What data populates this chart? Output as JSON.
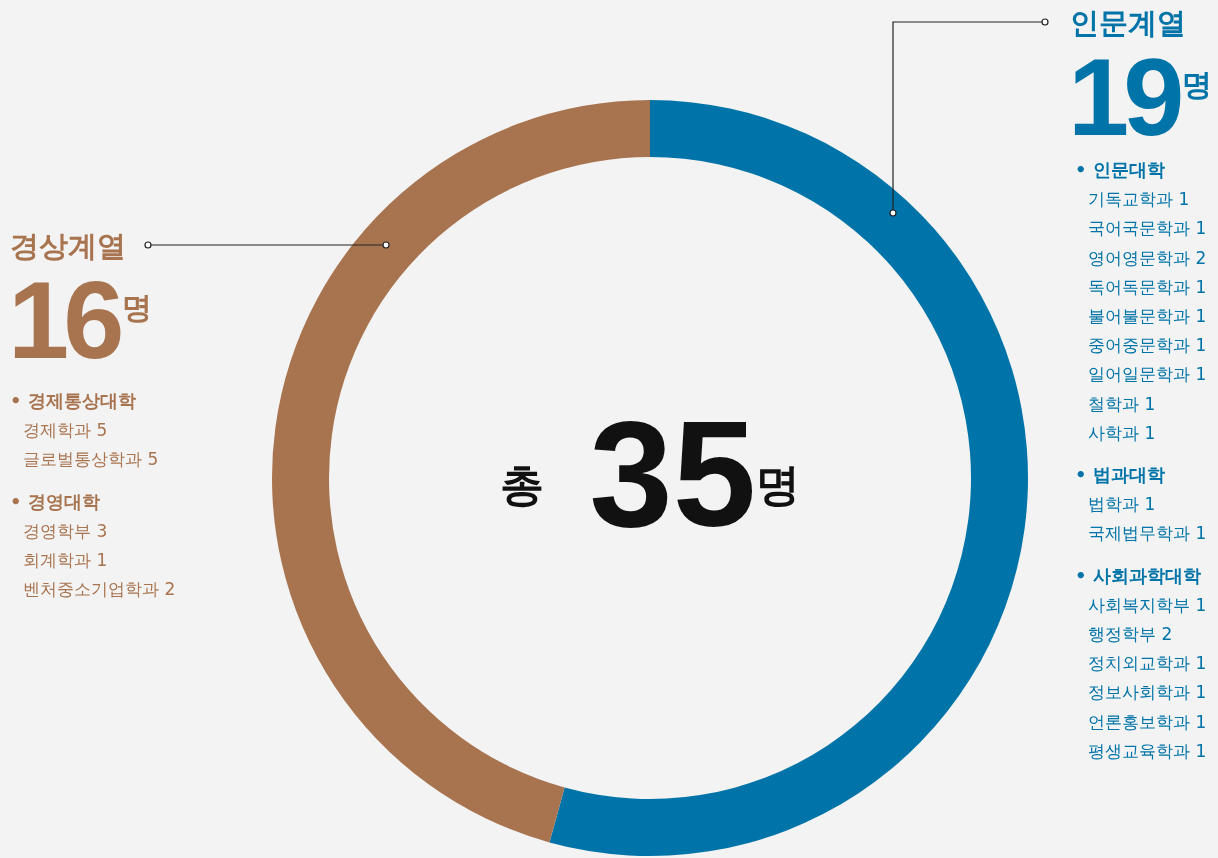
{
  "chart_data": {
    "type": "donut",
    "title": "총 35명",
    "categories": [
      "인문계열",
      "경상계열"
    ],
    "values": [
      19,
      16
    ],
    "colors": [
      "#0074a8",
      "#a87450"
    ],
    "value_labels": [
      "19명",
      "16명"
    ],
    "annotations": [
      "• 인문대학",
      "기독교학과 1",
      "국어국문학과 1",
      "영어영문학과 2",
      "독어독문학과 1",
      "불어불문학과 1",
      "중어중문학과 1",
      "일어일문학과 1",
      "철학과 1",
      "사학과 1",
      "• 법과대학",
      "법학과 1",
      "국제법무학과 1",
      "• 사회과학대학",
      "사회복지학부 1",
      "행정학부 2",
      "정치외교학과 1",
      "정보사회학과 1",
      "언론홍보학과 1",
      "평생교육학과 1",
      "• 경제통상대학",
      "경제학과 5",
      "글로벌통상학과 5",
      "• 경영대학",
      "경영학부 3",
      "회계학과 1",
      "벤처중소기업학과 2"
    ]
  }
}
